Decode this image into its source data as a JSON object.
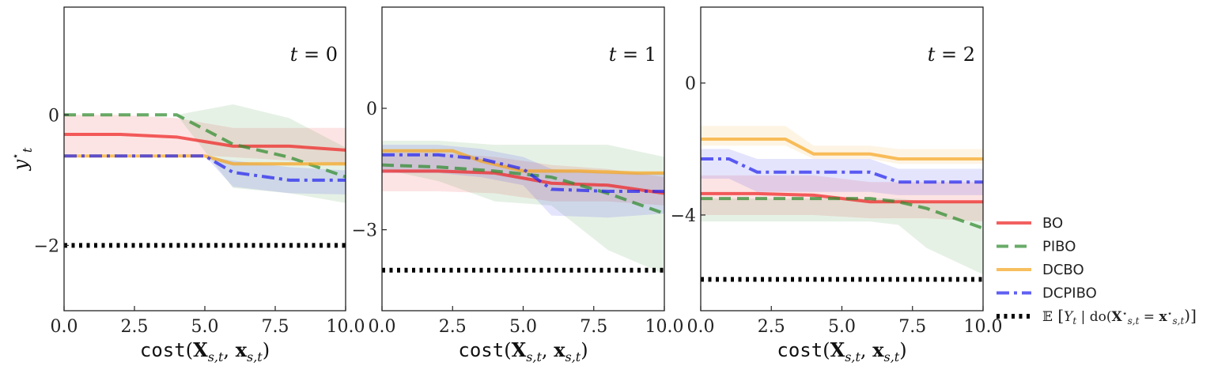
{
  "chart_data": [
    {
      "type": "line",
      "panel_title": "t = 0",
      "xlabel": "cost(X_{s,t}, x_{s,t})",
      "ylabel": "y*_t",
      "xlim": [
        0,
        10
      ],
      "ylim": [
        -3.0,
        1.65
      ],
      "x_ticks": [
        0,
        2.5,
        5,
        7.5,
        10
      ],
      "x_tick_labels": [
        "0.0",
        "2.5",
        "5.0",
        "7.5",
        "10.0"
      ],
      "y_ticks": [
        0,
        -2
      ],
      "y_tick_labels": [
        "0",
        "−2"
      ],
      "grid": false,
      "series": [
        {
          "name": "BO",
          "color": "#ee2222",
          "style": "solid",
          "x": [
            0,
            2,
            4,
            6,
            8,
            10
          ],
          "y": [
            -0.3,
            -0.3,
            -0.34,
            -0.48,
            -0.48,
            -0.54
          ],
          "band_lo": [
            -0.6,
            -0.6,
            -0.6,
            -0.65,
            -0.7,
            -0.75
          ],
          "band_hi": [
            0.0,
            0.0,
            -0.05,
            -0.2,
            -0.2,
            -0.2
          ]
        },
        {
          "name": "PIBO",
          "color": "#2e8b2e",
          "style": "dashed",
          "x": [
            0,
            4,
            6,
            8,
            10
          ],
          "y": [
            0.0,
            0.0,
            -0.45,
            -0.65,
            -0.95
          ],
          "band_lo": [
            0.0,
            0.0,
            -1.12,
            -1.2,
            -1.35
          ],
          "band_hi": [
            0.0,
            0.0,
            0.16,
            -0.05,
            -0.5
          ]
        },
        {
          "name": "DCBO",
          "color": "#f5a623",
          "style": "solid",
          "x": [
            0,
            5,
            6,
            8,
            10
          ],
          "y": [
            -0.63,
            -0.63,
            -0.75,
            -0.75,
            -0.75
          ],
          "band_lo": [
            -0.63,
            -0.63,
            -0.78,
            -0.78,
            -0.78
          ],
          "band_hi": [
            -0.63,
            -0.63,
            -0.72,
            -0.72,
            -0.72
          ]
        },
        {
          "name": "DCPIBO",
          "color": "#2222ee",
          "style": "dashdot",
          "x": [
            0,
            5,
            6,
            8,
            10
          ],
          "y": [
            -0.63,
            -0.63,
            -0.88,
            -1.0,
            -1.0
          ],
          "band_lo": [
            -0.63,
            -0.63,
            -1.1,
            -1.2,
            -1.22
          ],
          "band_hi": [
            -0.63,
            -0.63,
            -0.7,
            -0.8,
            -0.85
          ]
        },
        {
          "name": "E[Y_t | do(X*_{s,t} = x*_{s,t})]",
          "color": "#000000",
          "style": "dotted",
          "x": [
            0,
            10
          ],
          "y": [
            -2.0,
            -2.0
          ]
        }
      ]
    },
    {
      "type": "line",
      "panel_title": "t = 1",
      "xlabel": "cost(X_{s,t}, x_{s,t})",
      "ylabel": "",
      "xlim": [
        0,
        10
      ],
      "ylim": [
        -5.0,
        2.5
      ],
      "x_ticks": [
        0,
        2.5,
        5,
        7.5,
        10
      ],
      "x_tick_labels": [
        "0.0",
        "2.5",
        "5.0",
        "7.5",
        "10.0"
      ],
      "y_ticks": [
        0,
        -3
      ],
      "y_tick_labels": [
        "0",
        "−3"
      ],
      "grid": false,
      "series": [
        {
          "name": "BO",
          "color": "#ee2222",
          "style": "solid",
          "x": [
            0,
            2,
            4,
            6,
            8,
            10
          ],
          "y": [
            -1.55,
            -1.55,
            -1.6,
            -1.85,
            -1.9,
            -2.1
          ],
          "band_lo": [
            -2.05,
            -2.05,
            -2.1,
            -2.3,
            -2.3,
            -2.4
          ],
          "band_hi": [
            -1.1,
            -1.1,
            -1.2,
            -1.4,
            -1.5,
            -1.7
          ]
        },
        {
          "name": "PIBO",
          "color": "#2e8b2e",
          "style": "dashed",
          "x": [
            0,
            2,
            4,
            6,
            8,
            10
          ],
          "y": [
            -1.4,
            -1.45,
            -1.55,
            -1.7,
            -2.1,
            -2.6
          ],
          "band_lo": [
            -1.5,
            -1.8,
            -2.3,
            -2.4,
            -3.5,
            -4.1
          ],
          "band_hi": [
            -0.8,
            -0.8,
            -0.9,
            -0.9,
            -0.9,
            -1.2
          ]
        },
        {
          "name": "DCBO",
          "color": "#f5a623",
          "style": "solid",
          "x": [
            0,
            2.5,
            3.5,
            5,
            7,
            9,
            10
          ],
          "y": [
            -1.05,
            -1.05,
            -1.3,
            -1.55,
            -1.55,
            -1.6,
            -1.6
          ],
          "band_lo": [
            -1.1,
            -1.1,
            -1.35,
            -1.6,
            -1.6,
            -1.65,
            -1.65
          ],
          "band_hi": [
            -1.0,
            -1.0,
            -1.25,
            -1.5,
            -1.5,
            -1.55,
            -1.55
          ]
        },
        {
          "name": "DCPIBO",
          "color": "#2222ee",
          "style": "dashdot",
          "x": [
            0,
            2,
            3.5,
            5,
            6,
            8,
            10
          ],
          "y": [
            -1.15,
            -1.15,
            -1.25,
            -1.5,
            -2.0,
            -2.05,
            -2.05
          ],
          "band_lo": [
            -1.6,
            -1.6,
            -1.7,
            -1.9,
            -2.65,
            -2.7,
            -2.6
          ],
          "band_hi": [
            -0.9,
            -0.9,
            -1.0,
            -1.2,
            -1.5,
            -1.6,
            -1.6
          ]
        },
        {
          "name": "E[Y_t | do(X*_{s,t} = x*_{s,t})]",
          "color": "#000000",
          "style": "dotted",
          "x": [
            0,
            10
          ],
          "y": [
            -4.0,
            -4.0
          ]
        }
      ]
    },
    {
      "type": "line",
      "panel_title": "t = 2",
      "xlabel": "cost(X_{s,t}, x_{s,t})",
      "ylabel": "",
      "xlim": [
        0,
        10
      ],
      "ylim": [
        -6.9,
        2.3
      ],
      "x_ticks": [
        0,
        2.5,
        5,
        7.5,
        10
      ],
      "x_tick_labels": [
        "0.0",
        "2.5",
        "5.0",
        "7.5",
        "10.0"
      ],
      "y_ticks": [
        0,
        -4
      ],
      "y_tick_labels": [
        "0",
        "−4"
      ],
      "grid": false,
      "series": [
        {
          "name": "BO",
          "color": "#ee2222",
          "style": "solid",
          "x": [
            0,
            2,
            4,
            6,
            8,
            10
          ],
          "y": [
            -3.35,
            -3.35,
            -3.4,
            -3.6,
            -3.6,
            -3.6
          ],
          "band_lo": [
            -4.0,
            -4.0,
            -4.0,
            -4.1,
            -4.1,
            -4.2
          ],
          "band_hi": [
            -2.8,
            -2.8,
            -2.8,
            -3.0,
            -3.0,
            -3.0
          ]
        },
        {
          "name": "PIBO",
          "color": "#2e8b2e",
          "style": "dashed",
          "x": [
            0,
            2,
            4,
            6,
            7,
            8,
            10
          ],
          "y": [
            -3.5,
            -3.5,
            -3.5,
            -3.5,
            -3.6,
            -3.8,
            -4.4
          ],
          "band_lo": [
            -4.2,
            -4.2,
            -4.2,
            -4.2,
            -4.3,
            -5.0,
            -5.8
          ],
          "band_hi": [
            -3.5,
            -3.5,
            -3.5,
            -3.5,
            -3.5,
            -3.6,
            -3.6
          ]
        },
        {
          "name": "DCBO",
          "color": "#f5a623",
          "style": "solid",
          "x": [
            0,
            3,
            4,
            6,
            7,
            10
          ],
          "y": [
            -1.7,
            -1.7,
            -2.15,
            -2.15,
            -2.3,
            -2.3
          ],
          "band_lo": [
            -1.9,
            -1.9,
            -2.3,
            -2.3,
            -2.45,
            -2.45
          ],
          "band_hi": [
            -1.3,
            -1.3,
            -1.9,
            -1.9,
            -2.0,
            -2.0
          ]
        },
        {
          "name": "DCPIBO",
          "color": "#2222ee",
          "style": "dashdot",
          "x": [
            0,
            1,
            2,
            3,
            6,
            7,
            10
          ],
          "y": [
            -2.3,
            -2.3,
            -2.7,
            -2.7,
            -2.7,
            -3.0,
            -3.0
          ],
          "band_lo": [
            -2.9,
            -2.9,
            -3.3,
            -3.3,
            -3.3,
            -3.4,
            -3.4
          ],
          "band_hi": [
            -2.0,
            -2.0,
            -2.3,
            -2.3,
            -2.3,
            -2.6,
            -2.6
          ]
        },
        {
          "name": "E[Y_t | do(X*_{s,t} = x*_{s,t})]",
          "color": "#000000",
          "style": "dotted",
          "x": [
            0,
            10
          ],
          "y": [
            -5.95,
            -5.95
          ]
        }
      ]
    }
  ],
  "legend": {
    "placement": "lower-right-outside",
    "entries": [
      {
        "label": "BO",
        "color": "#ee2222",
        "style": "solid"
      },
      {
        "label": "PIBO",
        "color": "#2e8b2e",
        "style": "dashed"
      },
      {
        "label": "DCBO",
        "color": "#f5a623",
        "style": "solid"
      },
      {
        "label": "DCPIBO",
        "color": "#2222ee",
        "style": "dashdot"
      },
      {
        "label": "E[Y_t | do(X*_{s,t} = x*_{s,t})]",
        "color": "#000000",
        "style": "dotted"
      }
    ]
  }
}
